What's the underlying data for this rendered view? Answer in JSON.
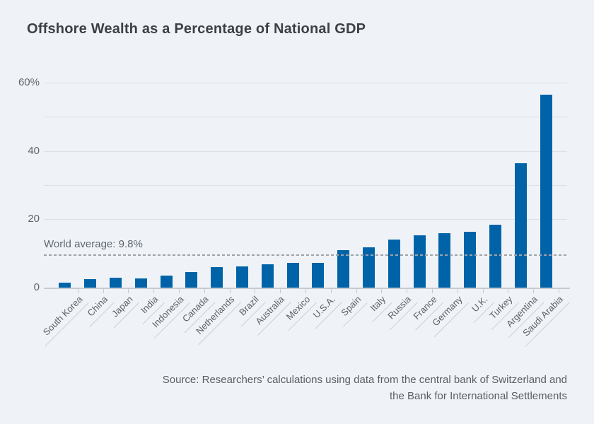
{
  "page": {
    "background": "#eff3f7"
  },
  "chart_data": {
    "type": "bar",
    "title": "Offshore Wealth as a Percentage of National GDP",
    "categories": [
      "South Korea",
      "China",
      "Japan",
      "India",
      "Indonesia",
      "Canada",
      "Netherlands",
      "Brazil",
      "Australia",
      "Mexico",
      "U.S.A.",
      "Spain",
      "Italy",
      "Russia",
      "France",
      "Germany",
      "U.K.",
      "Turkey",
      "Argentina",
      "Saudi Arabia"
    ],
    "values": [
      1.4,
      2.4,
      2.8,
      2.7,
      3.6,
      4.6,
      6.0,
      6.3,
      6.8,
      7.2,
      7.3,
      11.0,
      11.8,
      14.0,
      15.4,
      16.0,
      16.3,
      18.5,
      36.5,
      56.5
    ],
    "xlabel": "",
    "ylabel": "",
    "ylim": [
      0,
      60
    ],
    "grid": true,
    "legend": "none",
    "bar_color": "#0063a8",
    "y_ticks": [
      {
        "label": "60%",
        "value": 60
      },
      {
        "label": "40",
        "value": 40
      },
      {
        "label": "20",
        "value": 20
      },
      {
        "label": "0",
        "value": 0
      }
    ],
    "solid_gridline_values": [
      60,
      50,
      40,
      30,
      20
    ],
    "annotation": {
      "label": "World average: 9.8%",
      "value": 9.8
    },
    "source_lines": [
      "Source: Researchers’ calculations using data from the central bank of Switzerland and",
      "the Bank for International Settlements"
    ]
  }
}
